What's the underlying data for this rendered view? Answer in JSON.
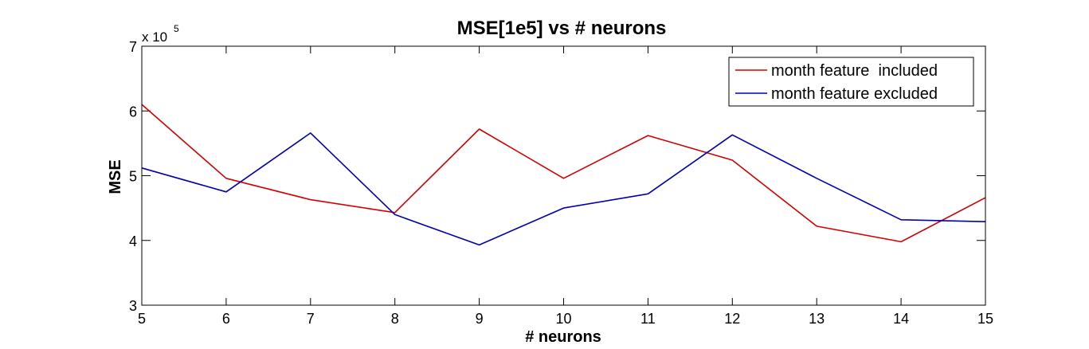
{
  "chart_data": {
    "type": "line",
    "title": "MSE[1e5] vs # neurons",
    "xlabel": "# neurons",
    "ylabel": "MSE",
    "y_multiplier_base": "x 10",
    "y_multiplier_exponent": "5",
    "xlim": [
      5,
      15
    ],
    "ylim": [
      3,
      7
    ],
    "x_ticks": [
      5,
      6,
      7,
      8,
      9,
      10,
      11,
      12,
      13,
      14,
      15
    ],
    "y_ticks": [
      3,
      4,
      5,
      6,
      7
    ],
    "x": [
      5,
      6,
      7,
      8,
      9,
      10,
      11,
      12,
      13,
      14,
      15
    ],
    "grid": false,
    "legend_position": "top-right",
    "series": [
      {
        "name": "month feature  included",
        "color": "#d40000",
        "values": [
          6.1,
          4.96,
          4.63,
          4.43,
          5.72,
          4.96,
          5.62,
          5.24,
          4.22,
          3.98,
          4.66
        ]
      },
      {
        "name": "month feature excluded",
        "color": "#0000b0",
        "values": [
          5.12,
          4.75,
          5.66,
          4.4,
          3.93,
          4.5,
          4.72,
          5.63,
          4.96,
          4.32,
          4.29
        ]
      }
    ]
  }
}
